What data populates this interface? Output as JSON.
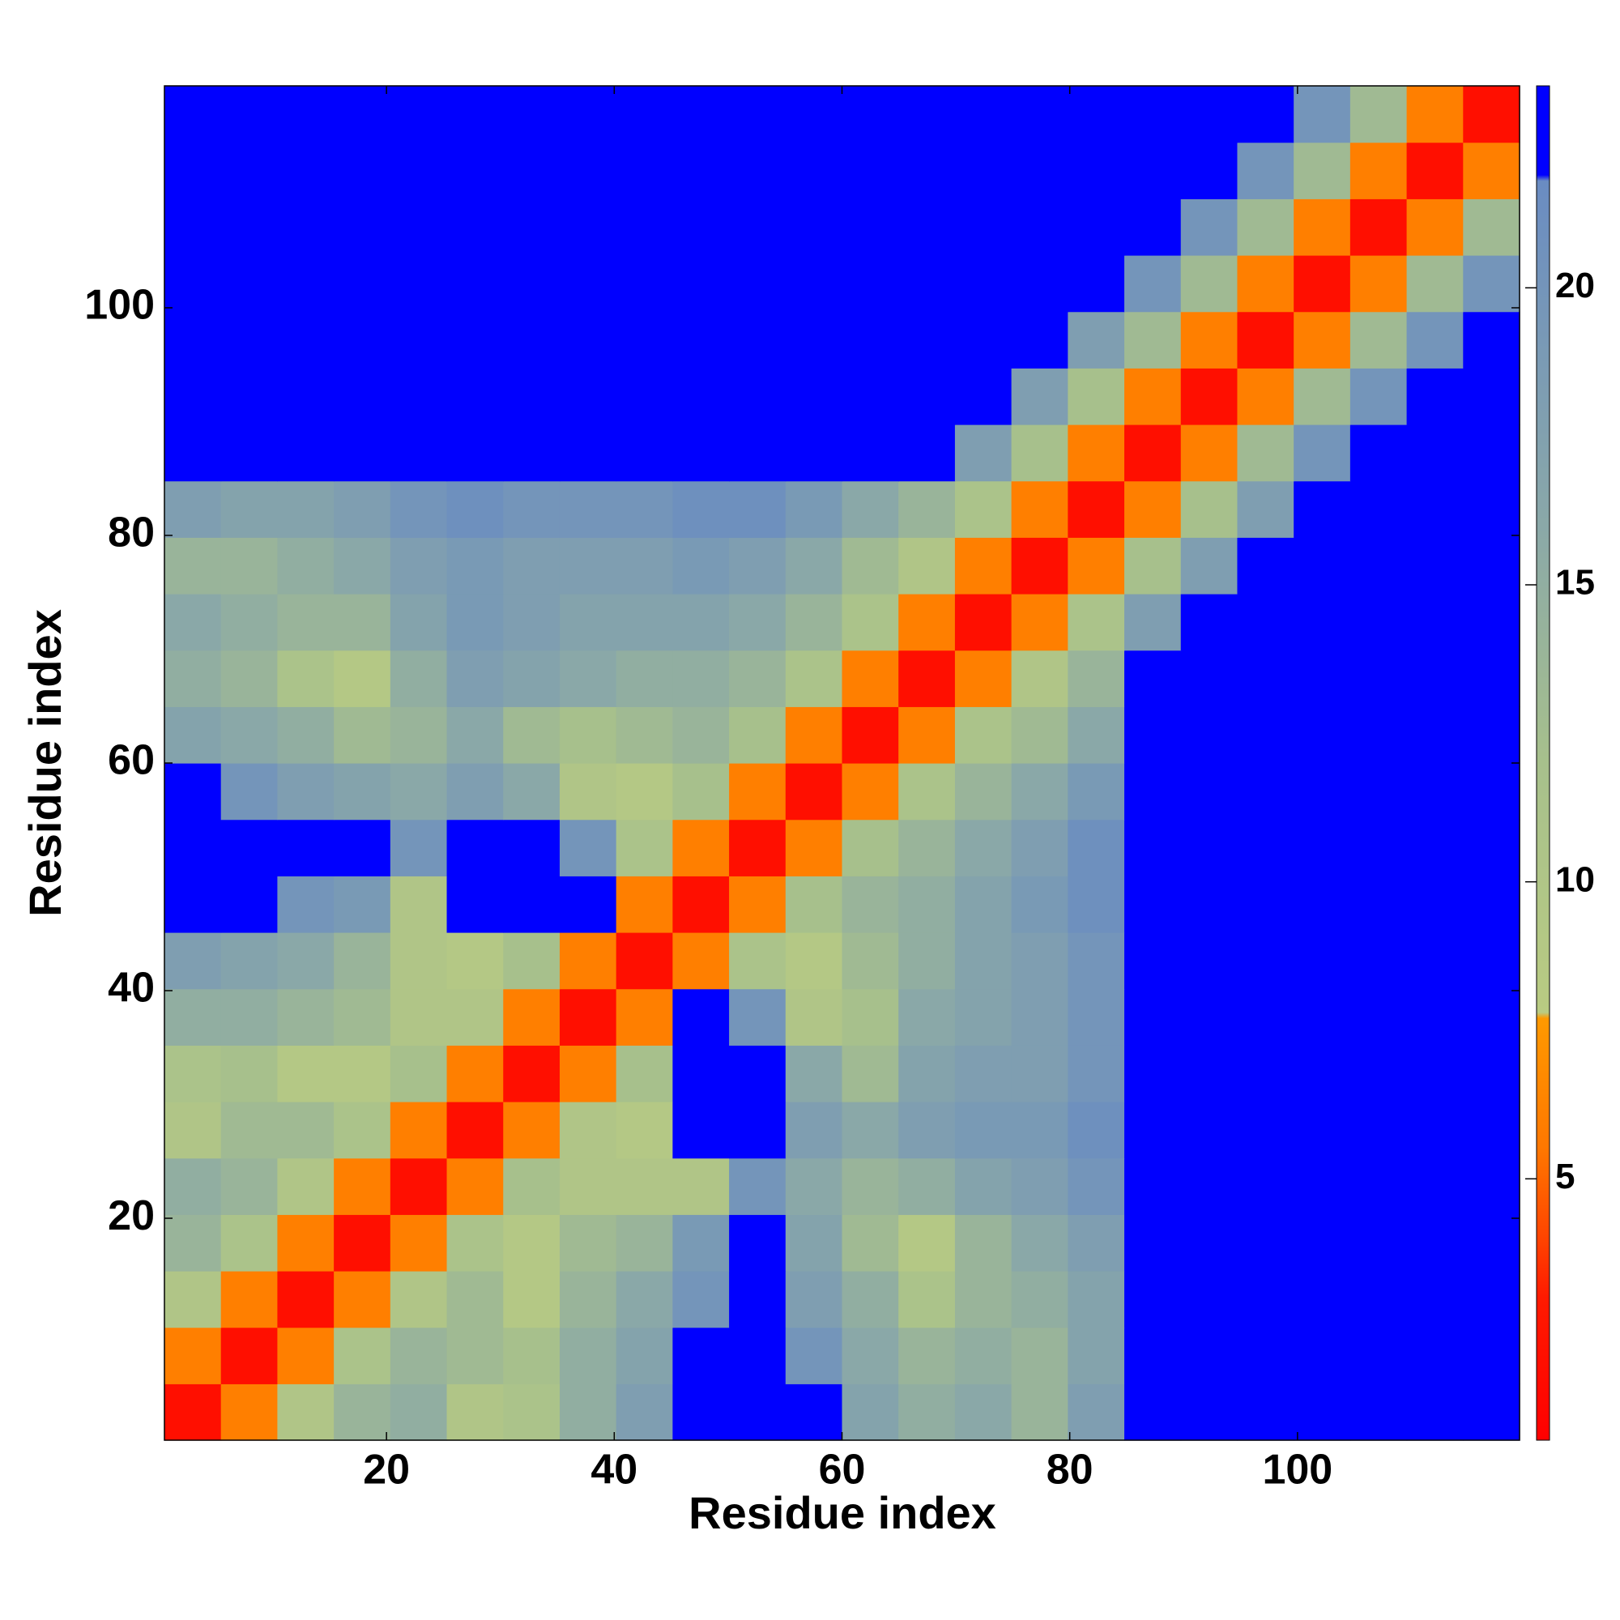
{
  "chart_data": {
    "type": "heatmap",
    "xlabel": "Residue index",
    "ylabel": "Residue index",
    "xlim": [
      0.5,
      119.5
    ],
    "ylim": [
      0.5,
      119.5
    ],
    "xticks": [
      20,
      40,
      60,
      80,
      100
    ],
    "yticks": [
      20,
      40,
      60,
      80,
      100
    ],
    "clim": [
      0.6,
      23.4
    ],
    "cticks": [
      5,
      10,
      15,
      20
    ],
    "colorscale": [
      [
        0.6,
        "#ff0000"
      ],
      [
        3.0,
        "#ff1a00"
      ],
      [
        4.0,
        "#ff4400"
      ],
      [
        5.5,
        "#ff7700"
      ],
      [
        7.7,
        "#ff9900"
      ],
      [
        7.8,
        "#b9cb82"
      ],
      [
        12,
        "#a7c08c"
      ],
      [
        16,
        "#8aa8a8"
      ],
      [
        21.8,
        "#6a8cc2"
      ],
      [
        21.9,
        "#0000ff"
      ],
      [
        23.4,
        "#0000ff"
      ]
    ],
    "z": [
      [
        2,
        6,
        10,
        14,
        15,
        10,
        11,
        15,
        18,
        23.4,
        23.4,
        23.4,
        17,
        15,
        16,
        14,
        18,
        23.4,
        23.4,
        23.4,
        23.4,
        23.4,
        23.4,
        23.4
      ],
      [
        6,
        2,
        6,
        11,
        14,
        13,
        12,
        15,
        17,
        23.4,
        23.4,
        20,
        16,
        14,
        15,
        14,
        17,
        23.4,
        23.4,
        23.4,
        23.4,
        23.4,
        23.4,
        23.4
      ],
      [
        10,
        6,
        2,
        6,
        10,
        13,
        9,
        14,
        16,
        20,
        23.4,
        18,
        15,
        11,
        14,
        15,
        17,
        23.4,
        23.4,
        23.4,
        23.4,
        23.4,
        23.4,
        23.4
      ],
      [
        14,
        11,
        6,
        2,
        6,
        11,
        9,
        13,
        14,
        19,
        23.4,
        17,
        13,
        9,
        14,
        16,
        18,
        23.4,
        23.4,
        23.4,
        23.4,
        23.4,
        23.4,
        23.4
      ],
      [
        15,
        14,
        10,
        6,
        2,
        6,
        12,
        10,
        10,
        10,
        20,
        16,
        14,
        15,
        17,
        18,
        20,
        23.4,
        23.4,
        23.4,
        23.4,
        23.4,
        23.4,
        23.4
      ],
      [
        10,
        13,
        13,
        11,
        6,
        2,
        6,
        10,
        9,
        23.4,
        23.4,
        18,
        16,
        18,
        19,
        19,
        21,
        23.4,
        23.4,
        23.4,
        23.4,
        23.4,
        23.4,
        23.4
      ],
      [
        11,
        12,
        9,
        9,
        12,
        6,
        2,
        6,
        12,
        23.4,
        23.4,
        16,
        13,
        17,
        18,
        18,
        20,
        23.4,
        23.4,
        23.4,
        23.4,
        23.4,
        23.4,
        23.4
      ],
      [
        15,
        15,
        14,
        13,
        10,
        10,
        6,
        2,
        6,
        23.4,
        20,
        10,
        12,
        16,
        17,
        18,
        20,
        23.4,
        23.4,
        23.4,
        23.4,
        23.4,
        23.4,
        23.4
      ],
      [
        18,
        17,
        16,
        14,
        10,
        9,
        12,
        6,
        2,
        6,
        11,
        9,
        13,
        15,
        17,
        18,
        20,
        23.4,
        23.4,
        23.4,
        23.4,
        23.4,
        23.4,
        23.4
      ],
      [
        23.4,
        23.4,
        20,
        19,
        10,
        23.4,
        23.4,
        23.4,
        6,
        2,
        6,
        12,
        14,
        15,
        17,
        19,
        21,
        23.4,
        23.4,
        23.4,
        23.4,
        23.4,
        23.4,
        23.4
      ],
      [
        23.4,
        23.4,
        23.4,
        23.4,
        20,
        23.4,
        23.4,
        20,
        11,
        6,
        2,
        6,
        12,
        14,
        16,
        18,
        21,
        23.4,
        23.4,
        23.4,
        23.4,
        23.4,
        23.4,
        23.4
      ],
      [
        23.4,
        20,
        18,
        17,
        16,
        18,
        16,
        10,
        9,
        12,
        6,
        2,
        6,
        11,
        14,
        16,
        19,
        23.4,
        23.4,
        23.4,
        23.4,
        23.4,
        23.4,
        23.4
      ],
      [
        17,
        16,
        15,
        13,
        14,
        16,
        13,
        12,
        13,
        14,
        12,
        6,
        2,
        6,
        11,
        13,
        16,
        23.4,
        23.4,
        23.4,
        23.4,
        23.4,
        23.4,
        23.4
      ],
      [
        15,
        14,
        11,
        9,
        15,
        18,
        17,
        16,
        15,
        15,
        14,
        11,
        6,
        2,
        6,
        10,
        14,
        23.4,
        23.4,
        23.4,
        23.4,
        23.4,
        23.4,
        23.4
      ],
      [
        16,
        15,
        14,
        14,
        17,
        19,
        18,
        17,
        17,
        17,
        16,
        14,
        11,
        6,
        2,
        6,
        11,
        18,
        23.4,
        23.4,
        23.4,
        23.4,
        23.4,
        23.4
      ],
      [
        14,
        14,
        15,
        16,
        18,
        19,
        18,
        18,
        18,
        19,
        18,
        16,
        13,
        10,
        6,
        2,
        6,
        12,
        18,
        23.4,
        23.4,
        23.4,
        23.4,
        23.4
      ],
      [
        18,
        17,
        17,
        18,
        20,
        21,
        20,
        20,
        20,
        21,
        21,
        19,
        16,
        14,
        11,
        6,
        2,
        6,
        12,
        18,
        23.4,
        23.4,
        23.4,
        23.4
      ],
      [
        23.4,
        23.4,
        23.4,
        23.4,
        23.4,
        23.4,
        23.4,
        23.4,
        23.4,
        23.4,
        23.4,
        23.4,
        23.4,
        23.4,
        18,
        12,
        6,
        2,
        6,
        13,
        20,
        23.4,
        23.4,
        23.4
      ],
      [
        23.4,
        23.4,
        23.4,
        23.4,
        23.4,
        23.4,
        23.4,
        23.4,
        23.4,
        23.4,
        23.4,
        23.4,
        23.4,
        23.4,
        23.4,
        18,
        12,
        6,
        2,
        6,
        13,
        20,
        23.4,
        23.4
      ],
      [
        23.4,
        23.4,
        23.4,
        23.4,
        23.4,
        23.4,
        23.4,
        23.4,
        23.4,
        23.4,
        23.4,
        23.4,
        23.4,
        23.4,
        23.4,
        23.4,
        18,
        13,
        6,
        2,
        6,
        13,
        20,
        23.4
      ],
      [
        23.4,
        23.4,
        23.4,
        23.4,
        23.4,
        23.4,
        23.4,
        23.4,
        23.4,
        23.4,
        23.4,
        23.4,
        23.4,
        23.4,
        23.4,
        23.4,
        23.4,
        20,
        13,
        6,
        2,
        6,
        13,
        20
      ],
      [
        23.4,
        23.4,
        23.4,
        23.4,
        23.4,
        23.4,
        23.4,
        23.4,
        23.4,
        23.4,
        23.4,
        23.4,
        23.4,
        23.4,
        23.4,
        23.4,
        23.4,
        23.4,
        20,
        13,
        6,
        2,
        6,
        13
      ],
      [
        23.4,
        23.4,
        23.4,
        23.4,
        23.4,
        23.4,
        23.4,
        23.4,
        23.4,
        23.4,
        23.4,
        23.4,
        23.4,
        23.4,
        23.4,
        23.4,
        23.4,
        23.4,
        23.4,
        20,
        13,
        6,
        2,
        6
      ],
      [
        23.4,
        23.4,
        23.4,
        23.4,
        23.4,
        23.4,
        23.4,
        23.4,
        23.4,
        23.4,
        23.4,
        23.4,
        23.4,
        23.4,
        23.4,
        23.4,
        23.4,
        23.4,
        23.4,
        23.4,
        20,
        13,
        6,
        2
      ]
    ]
  }
}
